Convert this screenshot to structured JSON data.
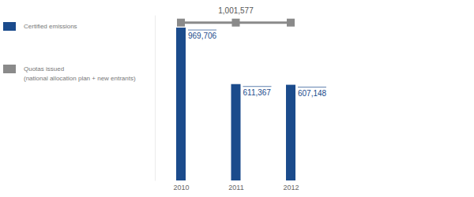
{
  "chart_data": {
    "type": "bar",
    "categories": [
      "2010",
      "2011",
      "2012"
    ],
    "series": [
      {
        "name": "Certified emissions",
        "type": "bar",
        "color": "#1b4b8c",
        "values": [
          969706,
          611367,
          607148
        ],
        "value_labels": [
          "969,706",
          "611,367",
          "607,148"
        ]
      },
      {
        "name": "Quotas issued (national allocation plan + new entrants)",
        "type": "line",
        "color": "#8a8a8a",
        "marker": "square",
        "values": [
          1001577,
          1001577,
          1001577
        ],
        "value_labels": [
          null,
          "1,001,577",
          null
        ]
      }
    ],
    "ylim": [
      0,
      1050000
    ],
    "yticks": [],
    "tick_labels": "x",
    "data_labels": true,
    "legend": "top-left"
  }
}
